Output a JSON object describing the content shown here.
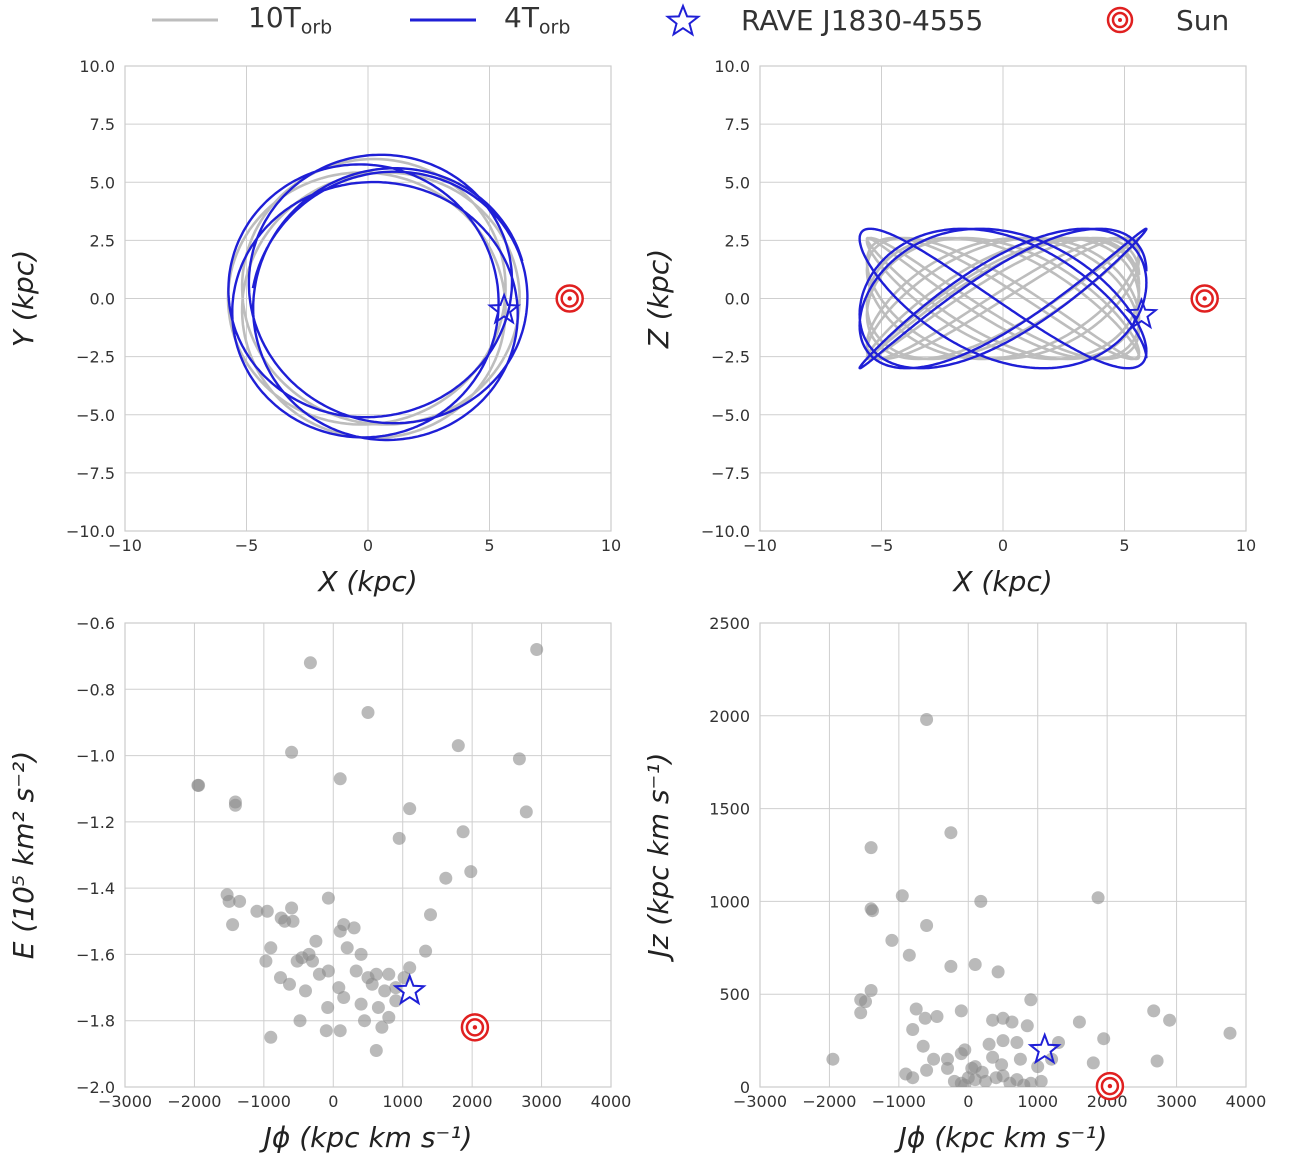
{
  "legend": {
    "placement": "top",
    "items": [
      {
        "kind": "line",
        "color": "#bdbdbd",
        "label_main": "10T",
        "label_sub": "orb"
      },
      {
        "kind": "line",
        "color": "#1f1fd6",
        "label_main": "4T",
        "label_sub": "orb"
      },
      {
        "kind": "star",
        "color": "#1f1fd6",
        "label_main": "RAVE J1830-4555",
        "label_sub": ""
      },
      {
        "kind": "sun",
        "color": "#e02020",
        "label_main": "Sun",
        "label_sub": ""
      }
    ]
  },
  "colors": {
    "orbit_10": "#bdbdbd",
    "orbit_4": "#1f1fd6",
    "star": "#1f1fd6",
    "sun": "#e02020",
    "points": "#8c8c8c",
    "grid": "#cfcfcf",
    "frame": "#cccccc"
  },
  "chart_data": [
    {
      "type": "line",
      "xlabel": "X (kpc)",
      "ylabel": "Y (kpc)",
      "xlim": [
        -10,
        10
      ],
      "ylim": [
        -10,
        10
      ],
      "xticks": [
        -10,
        -5,
        0,
        5,
        10
      ],
      "xtick_labels": [
        "−10",
        "−5",
        "0",
        "5",
        "10"
      ],
      "yticks": [
        -10,
        -7.5,
        -5,
        -2.5,
        0,
        2.5,
        5,
        7.5,
        10
      ],
      "ytick_labels": [
        "−10.0",
        "−7.5",
        "−5.0",
        "−2.5",
        "0.0",
        "2.5",
        "5.0",
        "7.5",
        "10.0"
      ],
      "grid": true,
      "series": [
        {
          "name": "10Torb",
          "kind": "orbit_xy",
          "model": {
            "radius_min": 5.2,
            "radius_max": 6.0,
            "orientation_deg": 0,
            "turns": 10,
            "pattern_precession_deg_per_turn": 18,
            "guiding_radius_kpc": 5.6
          }
        },
        {
          "name": "4Torb",
          "kind": "orbit_xy",
          "model": {
            "radius_min": 5.0,
            "radius_max": 6.2,
            "orientation_deg": 15,
            "turns": 4,
            "pattern_precession_deg_per_turn": 40,
            "guiding_radius_kpc": 5.6
          }
        }
      ],
      "markers": [
        {
          "name": "RAVE J1830-4555",
          "kind": "star",
          "x": 5.6,
          "y": -0.5
        },
        {
          "name": "Sun",
          "kind": "sun",
          "x": 8.3,
          "y": 0.0
        }
      ]
    },
    {
      "type": "line",
      "xlabel": "X (kpc)",
      "ylabel": "Z (kpc)",
      "xlim": [
        -10,
        10
      ],
      "ylim": [
        -10,
        10
      ],
      "xticks": [
        -10,
        -5,
        0,
        5,
        10
      ],
      "xtick_labels": [
        "−10",
        "−5",
        "0",
        "5",
        "10"
      ],
      "yticks": [
        -10,
        -7.5,
        -5,
        -2.5,
        0,
        2.5,
        5,
        7.5,
        10
      ],
      "ytick_labels": [
        "−10.0",
        "−7.5",
        "−5.0",
        "−2.5",
        "0.0",
        "2.5",
        "5.0",
        "7.5",
        "10.0"
      ],
      "grid": true,
      "series": [
        {
          "name": "10Torb",
          "kind": "orbit_xz",
          "model": {
            "x_amplitude_kpc": 5.6,
            "z_amplitude_kpc": 2.6,
            "frequency_ratio": 1.44,
            "turns": 10
          }
        },
        {
          "name": "4Torb",
          "kind": "orbit_xz",
          "model": {
            "x_amplitude_kpc": 5.9,
            "z_amplitude_kpc": 3.0,
            "frequency_ratio": 1.4,
            "turns": 4
          }
        }
      ],
      "markers": [
        {
          "name": "RAVE J1830-4555",
          "kind": "star",
          "x": 5.7,
          "y": -0.7
        },
        {
          "name": "Sun",
          "kind": "sun",
          "x": 8.3,
          "y": 0.0
        }
      ]
    },
    {
      "type": "scatter",
      "xlabel": "Jϕ (kpc km s⁻¹)",
      "ylabel": "E (10⁵ km² s⁻²)",
      "xlim": [
        -3000,
        4000
      ],
      "ylim": [
        -2.0,
        -0.6
      ],
      "xticks": [
        -3000,
        -2000,
        -1000,
        0,
        1000,
        2000,
        3000,
        4000
      ],
      "xtick_labels": [
        "−3000",
        "−2000",
        "−1000",
        "0",
        "1000",
        "2000",
        "3000",
        "4000"
      ],
      "yticks": [
        -2.0,
        -1.8,
        -1.6,
        -1.4,
        -1.2,
        -1.0,
        -0.8,
        -0.6
      ],
      "ytick_labels": [
        "−2.0",
        "−1.8",
        "−1.6",
        "−1.4",
        "−1.2",
        "−1.0",
        "−0.8",
        "−0.6"
      ],
      "grid": true,
      "points": [
        [
          -330,
          -0.72
        ],
        [
          2930,
          -0.68
        ],
        [
          500,
          -0.87
        ],
        [
          -600,
          -0.99
        ],
        [
          1800,
          -0.97
        ],
        [
          -1940,
          -1.09
        ],
        [
          -1950,
          -1.09
        ],
        [
          100,
          -1.07
        ],
        [
          2680,
          -1.01
        ],
        [
          -1410,
          -1.14
        ],
        [
          -1410,
          -1.15
        ],
        [
          1100,
          -1.16
        ],
        [
          2780,
          -1.17
        ],
        [
          1870,
          -1.23
        ],
        [
          950,
          -1.25
        ],
        [
          1980,
          -1.35
        ],
        [
          1620,
          -1.37
        ],
        [
          -1530,
          -1.42
        ],
        [
          -1500,
          -1.44
        ],
        [
          -1350,
          -1.44
        ],
        [
          -1100,
          -1.47
        ],
        [
          -950,
          -1.47
        ],
        [
          -600,
          -1.46
        ],
        [
          -750,
          -1.49
        ],
        [
          -70,
          -1.43
        ],
        [
          1400,
          -1.48
        ],
        [
          -1450,
          -1.51
        ],
        [
          -700,
          -1.5
        ],
        [
          -580,
          -1.5
        ],
        [
          150,
          -1.51
        ],
        [
          300,
          -1.52
        ],
        [
          -250,
          -1.56
        ],
        [
          100,
          -1.53
        ],
        [
          -900,
          -1.58
        ],
        [
          -350,
          -1.6
        ],
        [
          -450,
          -1.61
        ],
        [
          -520,
          -1.62
        ],
        [
          -970,
          -1.62
        ],
        [
          -300,
          -1.62
        ],
        [
          200,
          -1.58
        ],
        [
          400,
          -1.6
        ],
        [
          1330,
          -1.59
        ],
        [
          -760,
          -1.67
        ],
        [
          -200,
          -1.66
        ],
        [
          -70,
          -1.65
        ],
        [
          330,
          -1.65
        ],
        [
          500,
          -1.67
        ],
        [
          620,
          -1.66
        ],
        [
          -630,
          -1.69
        ],
        [
          -400,
          -1.71
        ],
        [
          80,
          -1.7
        ],
        [
          560,
          -1.69
        ],
        [
          800,
          -1.66
        ],
        [
          900,
          -1.7
        ],
        [
          1020,
          -1.67
        ],
        [
          1100,
          -1.64
        ],
        [
          -80,
          -1.76
        ],
        [
          400,
          -1.75
        ],
        [
          150,
          -1.73
        ],
        [
          650,
          -1.76
        ],
        [
          740,
          -1.71
        ],
        [
          900,
          -1.74
        ],
        [
          -900,
          -1.85
        ],
        [
          -480,
          -1.8
        ],
        [
          -100,
          -1.83
        ],
        [
          100,
          -1.83
        ],
        [
          450,
          -1.8
        ],
        [
          700,
          -1.82
        ],
        [
          800,
          -1.79
        ],
        [
          620,
          -1.89
        ]
      ],
      "markers": [
        {
          "name": "RAVE J1830-4555",
          "kind": "star",
          "x": 1100,
          "y": -1.71
        },
        {
          "name": "Sun",
          "kind": "sun",
          "x": 2040,
          "y": -1.82
        }
      ]
    },
    {
      "type": "scatter",
      "xlabel": "Jϕ (kpc km s⁻¹)",
      "ylabel": "Jz (kpc km s⁻¹)",
      "xlim": [
        -3000,
        4000
      ],
      "ylim": [
        0,
        2500
      ],
      "xticks": [
        -3000,
        -2000,
        -1000,
        0,
        1000,
        2000,
        3000,
        4000
      ],
      "xtick_labels": [
        "−3000",
        "−2000",
        "−1000",
        "0",
        "1000",
        "2000",
        "3000",
        "4000"
      ],
      "yticks": [
        0,
        500,
        1000,
        1500,
        2000,
        2500
      ],
      "ytick_labels": [
        "0",
        "500",
        "1000",
        "1500",
        "2000",
        "2500"
      ],
      "grid": true,
      "points": [
        [
          -600,
          1980
        ],
        [
          -250,
          1370
        ],
        [
          -1400,
          1290
        ],
        [
          -1400,
          960
        ],
        [
          -1380,
          950
        ],
        [
          -950,
          1030
        ],
        [
          1870,
          1020
        ],
        [
          180,
          1000
        ],
        [
          -1100,
          790
        ],
        [
          -850,
          710
        ],
        [
          -600,
          870
        ],
        [
          -250,
          650
        ],
        [
          100,
          660
        ],
        [
          430,
          620
        ],
        [
          -1400,
          520
        ],
        [
          -1550,
          470
        ],
        [
          -1480,
          460
        ],
        [
          -1550,
          400
        ],
        [
          -750,
          420
        ],
        [
          -450,
          380
        ],
        [
          -620,
          370
        ],
        [
          -800,
          310
        ],
        [
          2670,
          410
        ],
        [
          2900,
          360
        ],
        [
          3770,
          290
        ],
        [
          -100,
          410
        ],
        [
          350,
          360
        ],
        [
          500,
          370
        ],
        [
          630,
          350
        ],
        [
          900,
          470
        ],
        [
          1600,
          350
        ],
        [
          850,
          330
        ],
        [
          -300,
          150
        ],
        [
          -50,
          200
        ],
        [
          -100,
          180
        ],
        [
          -500,
          150
        ],
        [
          -650,
          220
        ],
        [
          300,
          230
        ],
        [
          350,
          160
        ],
        [
          500,
          250
        ],
        [
          700,
          240
        ],
        [
          750,
          150
        ],
        [
          1000,
          110
        ],
        [
          1200,
          150
        ],
        [
          1300,
          240
        ],
        [
          1950,
          260
        ],
        [
          2720,
          140
        ],
        [
          1800,
          130
        ],
        [
          -1950,
          150
        ],
        [
          -900,
          70
        ],
        [
          -800,
          50
        ],
        [
          -200,
          30
        ],
        [
          -100,
          20
        ],
        [
          0,
          50
        ],
        [
          50,
          100
        ],
        [
          100,
          40
        ],
        [
          200,
          80
        ],
        [
          250,
          30
        ],
        [
          400,
          50
        ],
        [
          500,
          60
        ],
        [
          600,
          20
        ],
        [
          700,
          40
        ],
        [
          800,
          10
        ],
        [
          900,
          20
        ],
        [
          1050,
          30
        ],
        [
          -50,
          10
        ],
        [
          -300,
          100
        ],
        [
          -600,
          90
        ],
        [
          100,
          110
        ],
        [
          480,
          120
        ]
      ],
      "markers": [
        {
          "name": "RAVE J1830-4555",
          "kind": "star",
          "x": 1100,
          "y": 200
        },
        {
          "name": "Sun",
          "kind": "sun",
          "x": 2040,
          "y": 5
        }
      ]
    }
  ]
}
